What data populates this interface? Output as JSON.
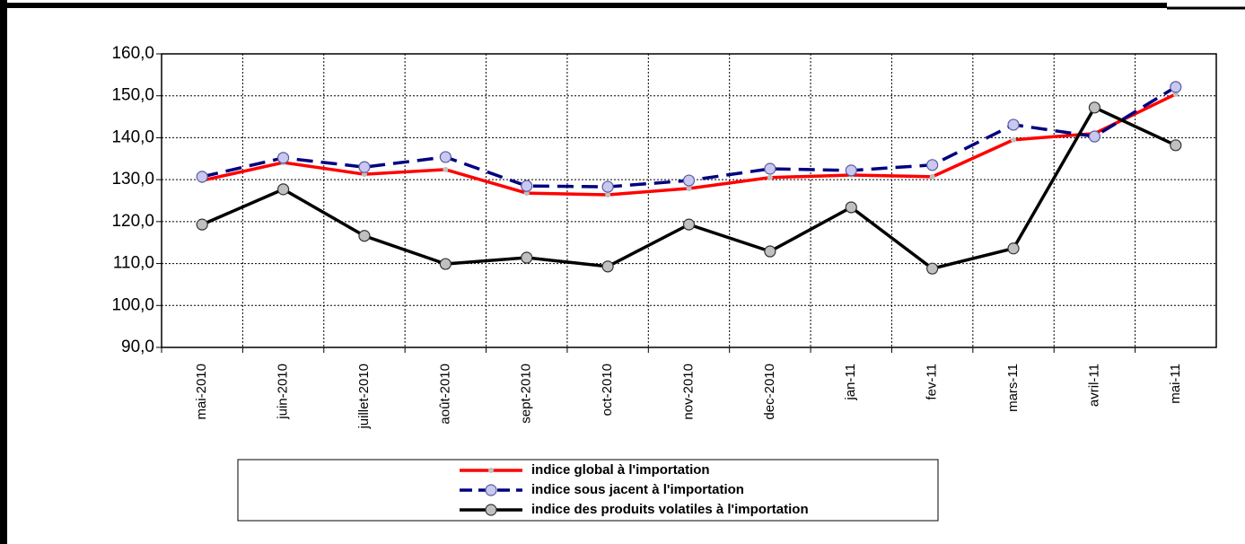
{
  "chart_data": {
    "type": "line",
    "categories": [
      "mai-2010",
      "juin-2010",
      "juillet-2010",
      "août-2010",
      "sept-2010",
      "oct-2010",
      "nov-2010",
      "dec-2010",
      "jan-11",
      "fev-11",
      "mars-11",
      "avril-11",
      "mai-11"
    ],
    "series": [
      {
        "name": "indice global à l'importation",
        "color": "#ff0000",
        "line_style": "solid",
        "marker_color": "#c0c0c0",
        "values": [
          129.8,
          134.1,
          131.3,
          132.4,
          126.8,
          126.4,
          127.9,
          130.5,
          131.1,
          130.7,
          139.5,
          141.0,
          150.4
        ]
      },
      {
        "name": "indice sous jacent à l'importation",
        "color": "#000080",
        "line_style": "dashed",
        "marker_color": "#c8c8f0",
        "values": [
          130.7,
          135.2,
          133.0,
          135.4,
          128.5,
          128.3,
          129.8,
          132.6,
          132.2,
          133.5,
          143.1,
          140.3,
          152.1
        ]
      },
      {
        "name": "indice des produits volatiles à l'importation",
        "color": "#000000",
        "line_style": "solid",
        "marker_color": "#c0c0c0",
        "values": [
          119.3,
          127.7,
          116.6,
          109.9,
          111.4,
          109.3,
          119.3,
          112.9,
          123.4,
          108.8,
          113.6,
          147.2,
          138.2
        ]
      }
    ],
    "ylim": [
      90,
      160
    ],
    "yticks": [
      {
        "value": 90,
        "label": "90,0"
      },
      {
        "value": 100,
        "label": "100,0"
      },
      {
        "value": 110,
        "label": "110,0"
      },
      {
        "value": 120,
        "label": "120,0"
      },
      {
        "value": 130,
        "label": "130,0"
      },
      {
        "value": 140,
        "label": "140,0"
      },
      {
        "value": 150,
        "label": "150,0"
      },
      {
        "value": 160,
        "label": "160,0"
      }
    ],
    "grid": true,
    "legend": "bottom"
  }
}
